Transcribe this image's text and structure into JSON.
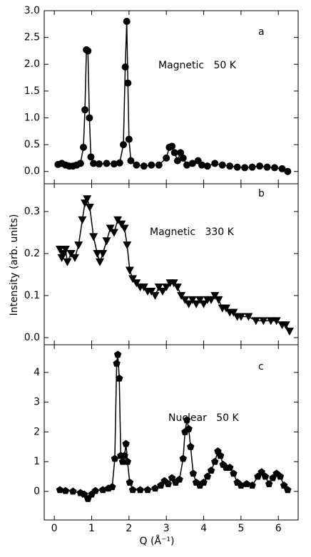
{
  "chart_data": [
    {
      "type": "scatter-line",
      "marker": "circle",
      "color": "#000000",
      "annotation": "a",
      "label": "Magnetic   50 K",
      "ylim": [
        -0.23,
        3.0
      ],
      "yticks": [
        {
          "value": 0,
          "label": "0.0"
        },
        0.5,
        {
          "value": 1,
          "label": "1.0"
        },
        1.5,
        {
          "value": 2,
          "label": "2.0"
        },
        2.5,
        {
          "value": 3,
          "label": "3.0"
        }
      ],
      "x": [
        0.1,
        0.2,
        0.3,
        0.4,
        0.5,
        0.6,
        0.7,
        0.78,
        0.82,
        0.86,
        0.9,
        0.94,
        0.98,
        1.05,
        1.2,
        1.4,
        1.6,
        1.75,
        1.85,
        1.9,
        1.94,
        1.97,
        2.0,
        2.05,
        2.2,
        2.4,
        2.6,
        2.8,
        3.0,
        3.08,
        3.15,
        3.22,
        3.3,
        3.38,
        3.45,
        3.55,
        3.7,
        3.85,
        3.95,
        4.1,
        4.3,
        4.5,
        4.7,
        4.9,
        5.1,
        5.3,
        5.5,
        5.7,
        5.9,
        6.1,
        6.25
      ],
      "values": [
        0.13,
        0.15,
        0.12,
        0.1,
        0.1,
        0.12,
        0.15,
        0.45,
        1.15,
        2.27,
        2.25,
        1.0,
        0.27,
        0.15,
        0.14,
        0.15,
        0.14,
        0.16,
        0.5,
        1.95,
        2.8,
        1.65,
        0.6,
        0.2,
        0.12,
        0.1,
        0.12,
        0.12,
        0.25,
        0.45,
        0.47,
        0.35,
        0.2,
        0.35,
        0.25,
        0.12,
        0.15,
        0.2,
        0.12,
        0.1,
        0.15,
        0.12,
        0.1,
        0.08,
        0.07,
        0.08,
        0.1,
        0.08,
        0.07,
        0.05,
        0.0
      ]
    },
    {
      "type": "scatter-line",
      "marker": "triangle-down",
      "color": "#000000",
      "annotation": "b",
      "label": "Magnetic   330 K",
      "ylabel": "Intensity (arb. units)",
      "ylim": [
        -0.017,
        0.366
      ],
      "yticks": [
        {
          "value": 0,
          "label": "0.0"
        },
        0.1,
        0.2,
        0.3
      ],
      "x": [
        0.15,
        0.2,
        0.25,
        0.3,
        0.35,
        0.45,
        0.55,
        0.65,
        0.75,
        0.82,
        0.88,
        0.95,
        1.05,
        1.15,
        1.22,
        1.3,
        1.4,
        1.5,
        1.6,
        1.7,
        1.8,
        1.88,
        1.95,
        2.02,
        2.1,
        2.2,
        2.3,
        2.4,
        2.5,
        2.6,
        2.7,
        2.8,
        2.9,
        3.0,
        3.1,
        3.2,
        3.3,
        3.4,
        3.5,
        3.6,
        3.7,
        3.8,
        3.9,
        4.0,
        4.1,
        4.2,
        4.3,
        4.4,
        4.5,
        4.6,
        4.7,
        4.8,
        4.9,
        5.0,
        5.2,
        5.4,
        5.6,
        5.8,
        5.95,
        6.1,
        6.2,
        6.3
      ],
      "values": [
        0.21,
        0.19,
        0.2,
        0.21,
        0.18,
        0.2,
        0.19,
        0.22,
        0.28,
        0.32,
        0.33,
        0.31,
        0.24,
        0.2,
        0.18,
        0.2,
        0.23,
        0.26,
        0.25,
        0.28,
        0.27,
        0.26,
        0.22,
        0.16,
        0.14,
        0.13,
        0.12,
        0.12,
        0.11,
        0.11,
        0.1,
        0.12,
        0.11,
        0.12,
        0.13,
        0.13,
        0.12,
        0.1,
        0.09,
        0.08,
        0.09,
        0.08,
        0.09,
        0.08,
        0.09,
        0.09,
        0.1,
        0.09,
        0.07,
        0.07,
        0.06,
        0.06,
        0.05,
        0.05,
        0.05,
        0.04,
        0.04,
        0.04,
        0.04,
        0.03,
        0.03,
        0.015
      ]
    },
    {
      "type": "scatter-line",
      "marker": "pentagon",
      "color": "#000000",
      "annotation": "c",
      "label": "Nuclear   50 K",
      "xlabel": "Q (Å⁻¹)",
      "xlim": [
        -0.27,
        6.53
      ],
      "xticks": [
        0,
        1,
        2,
        3,
        4,
        5,
        6
      ],
      "ylim": [
        -0.96,
        4.93
      ],
      "yticks": [
        0,
        1,
        2,
        3,
        4
      ],
      "x": [
        0.15,
        0.3,
        0.5,
        0.7,
        0.8,
        0.9,
        1.0,
        1.1,
        1.3,
        1.45,
        1.55,
        1.62,
        1.67,
        1.7,
        1.74,
        1.78,
        1.83,
        1.88,
        1.92,
        1.96,
        2.02,
        2.1,
        2.3,
        2.5,
        2.7,
        2.85,
        2.95,
        3.05,
        3.15,
        3.25,
        3.35,
        3.45,
        3.5,
        3.55,
        3.6,
        3.65,
        3.72,
        3.8,
        3.9,
        4.0,
        4.1,
        4.2,
        4.3,
        4.38,
        4.45,
        4.52,
        4.6,
        4.7,
        4.8,
        4.9,
        5.0,
        5.15,
        5.3,
        5.45,
        5.55,
        5.65,
        5.75,
        5.85,
        5.95,
        6.05,
        6.15,
        6.25
      ],
      "values": [
        0.05,
        0.02,
        0.0,
        -0.05,
        -0.1,
        -0.25,
        -0.1,
        0.02,
        0.05,
        0.1,
        0.15,
        1.1,
        4.3,
        4.6,
        3.8,
        1.2,
        1.0,
        1.2,
        1.6,
        1.0,
        0.3,
        0.05,
        0.05,
        0.05,
        0.1,
        0.2,
        0.35,
        0.25,
        0.45,
        0.3,
        0.4,
        1.1,
        2.0,
        2.4,
        2.1,
        1.5,
        0.6,
        0.3,
        0.2,
        0.3,
        0.5,
        0.7,
        1.0,
        1.35,
        1.2,
        0.9,
        0.8,
        0.8,
        0.6,
        0.3,
        0.2,
        0.25,
        0.2,
        0.5,
        0.65,
        0.5,
        0.25,
        0.45,
        0.6,
        0.5,
        0.2,
        0.05
      ]
    }
  ]
}
